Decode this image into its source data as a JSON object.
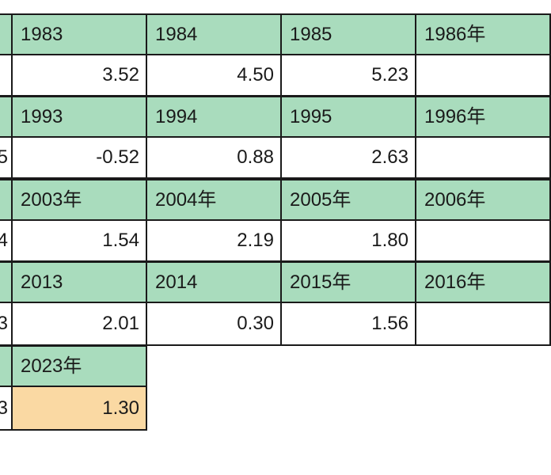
{
  "table": {
    "rows": [
      {
        "edge_value": "",
        "headers": [
          "1983",
          "1984",
          "1985",
          "1986年"
        ],
        "values": [
          "3.52",
          "4.50",
          "5.23",
          ""
        ]
      },
      {
        "edge_value": "5",
        "headers": [
          "1993",
          "1994",
          "1995",
          "1996年"
        ],
        "values": [
          "-0.52",
          "0.88",
          "2.63",
          ""
        ]
      },
      {
        "edge_value": "4",
        "headers": [
          "2003年",
          "2004年",
          "2005年",
          "2006年"
        ],
        "values": [
          "1.54",
          "2.19",
          "1.80",
          ""
        ]
      },
      {
        "edge_value": "3",
        "headers": [
          "2013",
          "2014",
          "2015年",
          "2016年"
        ],
        "values": [
          "2.01",
          "0.30",
          "1.56",
          ""
        ]
      },
      {
        "edge_value": "3",
        "headers": [
          "2023年"
        ],
        "values": [
          "1.30"
        ]
      }
    ],
    "highlight_color": "#fad9a3",
    "header_color": "#a9dcbd"
  }
}
